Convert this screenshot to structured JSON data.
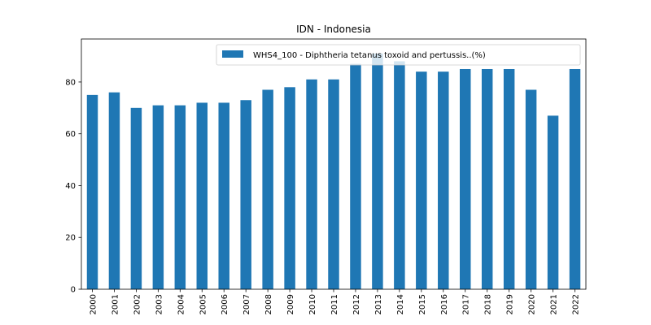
{
  "chart_data": {
    "type": "bar",
    "title": "IDN - Indonesia",
    "xlabel": "",
    "ylabel": "",
    "categories": [
      "2000",
      "2001",
      "2002",
      "2003",
      "2004",
      "2005",
      "2006",
      "2007",
      "2008",
      "2009",
      "2010",
      "2011",
      "2012",
      "2013",
      "2014",
      "2015",
      "2016",
      "2017",
      "2018",
      "2019",
      "2020",
      "2021",
      "2022"
    ],
    "series": [
      {
        "name": "WHS4_100 - Diphtheria tetanus toxoid and pertussis..(%)",
        "color": "#1f77b4",
        "values": [
          75,
          76,
          70,
          71,
          71,
          72,
          72,
          73,
          77,
          78,
          81,
          81,
          87,
          91,
          88,
          84,
          84,
          85,
          85,
          85,
          77,
          67,
          85
        ]
      }
    ],
    "ylim": [
      0,
      96.6
    ],
    "yticks": [
      0,
      20,
      40,
      60,
      80
    ],
    "grid": false,
    "legend_position": "top-right"
  }
}
